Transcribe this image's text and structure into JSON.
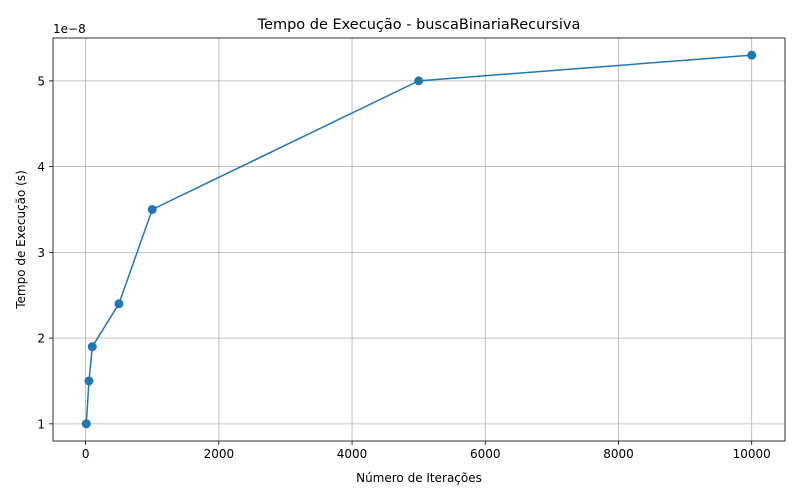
{
  "chart_data": {
    "type": "line",
    "title": "Tempo de Execução - buscaBinariaRecursiva",
    "xlabel": "Número de Iterações",
    "ylabel": "Tempo de Execução (s)",
    "offset_label": "1e−8",
    "x": [
      10,
      50,
      100,
      500,
      1000,
      5000,
      10000
    ],
    "y": [
      1e-08,
      1.5e-08,
      1.9e-08,
      2.4e-08,
      3.5e-08,
      5e-08,
      5.3e-08
    ],
    "xlim": [
      -490,
      10500
    ],
    "ylim": [
      8e-09,
      5.5e-08
    ],
    "xticks": [
      0,
      2000,
      4000,
      6000,
      8000,
      10000
    ],
    "xtick_labels": [
      "0",
      "2000",
      "4000",
      "6000",
      "8000",
      "10000"
    ],
    "yticks": [
      1e-08,
      2e-08,
      3e-08,
      4e-08,
      5e-08
    ],
    "ytick_labels": [
      "1",
      "2",
      "3",
      "4",
      "5"
    ],
    "grid": true,
    "marker": "circle",
    "colors": {
      "line": "#1f77b4"
    }
  }
}
